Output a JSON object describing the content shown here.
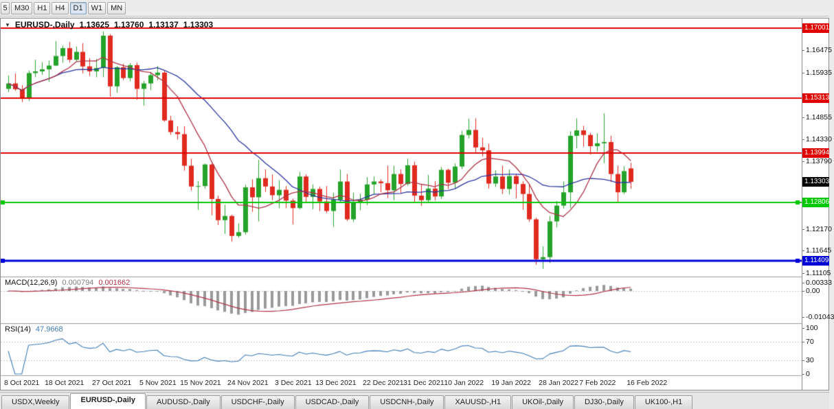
{
  "toolbar": {
    "timeframe_buttons": [
      "5",
      "M30",
      "H1",
      "H4",
      "D1",
      "W1",
      "MN"
    ],
    "active_timeframe": "D1"
  },
  "price_panel": {
    "title": {
      "symbol_period": "EURUSD-,Daily",
      "open": "1.13625",
      "high": "1.13760",
      "low": "1.13137",
      "close": "1.13303"
    },
    "axis_ticks": [
      {
        "label": "1.16475",
        "price": 1.16475
      },
      {
        "label": "1.15935",
        "price": 1.15935
      },
      {
        "label": "1.14855",
        "price": 1.14855
      },
      {
        "label": "1.14330",
        "price": 1.1433
      },
      {
        "label": "1.13790",
        "price": 1.1379
      },
      {
        "label": "1.12170",
        "price": 1.1217
      },
      {
        "label": "1.11645",
        "price": 1.11645
      },
      {
        "label": "1.11105",
        "price": 1.11105
      }
    ],
    "hlines": [
      {
        "label": "1.17001",
        "price": 1.17001,
        "color": "#e00000",
        "width": 2,
        "end_markers": false
      },
      {
        "label": "1.15313",
        "price": 1.15313,
        "color": "#e00000",
        "width": 2,
        "end_markers": false
      },
      {
        "label": "1.13994",
        "price": 1.13994,
        "color": "#e00000",
        "width": 2,
        "end_markers": false
      },
      {
        "label": "1.12806",
        "price": 1.12806,
        "color": "#00c800",
        "width": 2,
        "end_markers": true
      },
      {
        "label": "1.11409",
        "price": 1.11409,
        "color": "#0000d8",
        "width": 3,
        "end_markers": true
      }
    ],
    "current_price_badge": {
      "label": "1.13303",
      "price": 1.13303,
      "bg": "#000000",
      "fg": "#ffffff"
    }
  },
  "macd_panel": {
    "name": "MACD(12,26,9)",
    "main_value": "0.000794",
    "signal_value": "0.001662",
    "axis": [
      {
        "label": "0.00333",
        "value": 0.00333
      },
      {
        "label": "0.00",
        "value": 0
      },
      {
        "label": "-0.01043",
        "value": -0.01043
      }
    ],
    "histogram_color": "#9a9a9a",
    "signal_color": "#b03246"
  },
  "rsi_panel": {
    "name": "RSI(14)",
    "value": "47.9668",
    "axis": [
      {
        "label": "100",
        "value": 100
      },
      {
        "label": "70",
        "value": 70
      },
      {
        "label": "30",
        "value": 30
      },
      {
        "label": "0",
        "value": 0
      }
    ],
    "line_color": "#3e7cb8",
    "level_lines": [
      70,
      30
    ]
  },
  "time_axis": {
    "labels": [
      {
        "text": "8 Oct 2021",
        "bar": 0
      },
      {
        "text": "18 Oct 2021",
        "bar": 6
      },
      {
        "text": "27 Oct 2021",
        "bar": 13
      },
      {
        "text": "5 Nov 2021",
        "bar": 20
      },
      {
        "text": "15 Nov 2021",
        "bar": 26
      },
      {
        "text": "24 Nov 2021",
        "bar": 33
      },
      {
        "text": "3 Dec 2021",
        "bar": 40
      },
      {
        "text": "13 Dec 2021",
        "bar": 46
      },
      {
        "text": "22 Dec 2021",
        "bar": 53
      },
      {
        "text": "31 Dec 2021",
        "bar": 59
      },
      {
        "text": "10 Jan 2022",
        "bar": 65
      },
      {
        "text": "19 Jan 2022",
        "bar": 72
      },
      {
        "text": "28 Jan 2022",
        "bar": 79
      },
      {
        "text": "7 Feb 2022",
        "bar": 85
      },
      {
        "text": "16 Feb 2022",
        "bar": 92
      }
    ]
  },
  "tab_bar": {
    "tabs": [
      "USDX,Weekly",
      "EURUSD-,Daily",
      "AUDUSD-,Daily",
      "USDCHF-,Daily",
      "USDCAD-,Daily",
      "USDCNH-,Daily",
      "XAUUSD-,H1",
      "UKOil-,Daily",
      "DJ30-,Daily",
      "UK100-,H1"
    ],
    "active_index": 1
  },
  "chart_data": {
    "type": "candlestick",
    "symbol": "EURUSD-",
    "timeframe": "Daily",
    "last_bar_ohlc": {
      "open": 1.13625,
      "high": 1.1376,
      "low": 1.13137,
      "close": 1.13303
    },
    "price_axis": {
      "top_price": 1.17232,
      "bottom_price": 1.11038
    },
    "up_color": "#25a22a",
    "down_color": "#e02a20",
    "moving_averages": [
      {
        "type": "sma",
        "period": 8,
        "color": "#b03246"
      },
      {
        "type": "sma",
        "period": 20,
        "color": "#2a33a0"
      }
    ],
    "horizontal_levels": [
      1.17001,
      1.15313,
      1.13994,
      1.12806,
      1.11409
    ],
    "candles_ohlc": [
      [
        1.1554,
        1.1586,
        1.1546,
        1.1567
      ],
      [
        1.1567,
        1.1591,
        1.1549,
        1.1553
      ],
      [
        1.1553,
        1.1563,
        1.1522,
        1.153
      ],
      [
        1.153,
        1.1598,
        1.1525,
        1.1592
      ],
      [
        1.1592,
        1.1624,
        1.1582,
        1.1596
      ],
      [
        1.1596,
        1.1618,
        1.1588,
        1.1601
      ],
      [
        1.1601,
        1.1622,
        1.1571,
        1.161
      ],
      [
        1.161,
        1.1669,
        1.1609,
        1.1633
      ],
      [
        1.1633,
        1.1658,
        1.1617,
        1.1652
      ],
      [
        1.1652,
        1.1667,
        1.1617,
        1.1624
      ],
      [
        1.1624,
        1.1656,
        1.162,
        1.1643
      ],
      [
        1.1643,
        1.1664,
        1.1591,
        1.1608
      ],
      [
        1.1608,
        1.1628,
        1.1585,
        1.1596
      ],
      [
        1.1596,
        1.1626,
        1.1582,
        1.1604
      ],
      [
        1.1604,
        1.1692,
        1.1582,
        1.1682
      ],
      [
        1.1682,
        1.1686,
        1.1535,
        1.156
      ],
      [
        1.156,
        1.1609,
        1.1545,
        1.1606
      ],
      [
        1.1606,
        1.1614,
        1.1575,
        1.158
      ],
      [
        1.158,
        1.1616,
        1.1572,
        1.1611
      ],
      [
        1.1611,
        1.1617,
        1.1528,
        1.1554
      ],
      [
        1.1554,
        1.1573,
        1.1514,
        1.1567
      ],
      [
        1.1567,
        1.1595,
        1.1551,
        1.1587
      ],
      [
        1.1587,
        1.1609,
        1.1575,
        1.1593
      ],
      [
        1.1593,
        1.1598,
        1.1475,
        1.1478
      ],
      [
        1.1478,
        1.1489,
        1.1443,
        1.145
      ],
      [
        1.145,
        1.1464,
        1.1432,
        1.1445
      ],
      [
        1.1445,
        1.1464,
        1.1357,
        1.1369
      ],
      [
        1.1369,
        1.1386,
        1.1309,
        1.1319
      ],
      [
        1.1319,
        1.1332,
        1.1263,
        1.132
      ],
      [
        1.132,
        1.1374,
        1.1314,
        1.1372
      ],
      [
        1.1372,
        1.1374,
        1.125,
        1.1289
      ],
      [
        1.1289,
        1.1297,
        1.1226,
        1.1238
      ],
      [
        1.1238,
        1.1275,
        1.1205,
        1.1248
      ],
      [
        1.1248,
        1.1251,
        1.1186,
        1.12
      ],
      [
        1.12,
        1.123,
        1.1196,
        1.1209
      ],
      [
        1.1209,
        1.1323,
        1.1203,
        1.1317
      ],
      [
        1.1317,
        1.1336,
        1.1258,
        1.1293
      ],
      [
        1.1293,
        1.1383,
        1.1235,
        1.1339
      ],
      [
        1.1339,
        1.136,
        1.1306,
        1.1319
      ],
      [
        1.1319,
        1.1348,
        1.1286,
        1.1298
      ],
      [
        1.1298,
        1.1334,
        1.1267,
        1.1311
      ],
      [
        1.1311,
        1.132,
        1.1267,
        1.1285
      ],
      [
        1.1285,
        1.129,
        1.1228,
        1.1267
      ],
      [
        1.1267,
        1.1354,
        1.1264,
        1.1343
      ],
      [
        1.1343,
        1.1348,
        1.1279,
        1.1294
      ],
      [
        1.1294,
        1.1324,
        1.1264,
        1.1313
      ],
      [
        1.1313,
        1.1319,
        1.126,
        1.1283
      ],
      [
        1.1283,
        1.132,
        1.1255,
        1.126
      ],
      [
        1.126,
        1.1304,
        1.1222,
        1.1287
      ],
      [
        1.1287,
        1.136,
        1.128,
        1.1331
      ],
      [
        1.1331,
        1.1349,
        1.1236,
        1.124
      ],
      [
        1.124,
        1.1304,
        1.1234,
        1.128
      ],
      [
        1.128,
        1.1302,
        1.1262,
        1.1287
      ],
      [
        1.1287,
        1.1342,
        1.1274,
        1.1324
      ],
      [
        1.1324,
        1.1343,
        1.13,
        1.1331
      ],
      [
        1.1331,
        1.1336,
        1.1305,
        1.1327
      ],
      [
        1.1327,
        1.1369,
        1.1291,
        1.131
      ],
      [
        1.131,
        1.1369,
        1.1286,
        1.1349
      ],
      [
        1.1349,
        1.136,
        1.1304,
        1.1325
      ],
      [
        1.1325,
        1.1386,
        1.1321,
        1.137
      ],
      [
        1.137,
        1.1379,
        1.1279,
        1.1297
      ],
      [
        1.1297,
        1.1323,
        1.1272,
        1.1286
      ],
      [
        1.1286,
        1.1347,
        1.1281,
        1.1314
      ],
      [
        1.1314,
        1.1332,
        1.1285,
        1.1295
      ],
      [
        1.1295,
        1.1366,
        1.1289,
        1.1359
      ],
      [
        1.1359,
        1.1362,
        1.1313,
        1.1328
      ],
      [
        1.1328,
        1.1374,
        1.1314,
        1.1367
      ],
      [
        1.1367,
        1.1453,
        1.1361,
        1.1443
      ],
      [
        1.1443,
        1.1482,
        1.1435,
        1.1455
      ],
      [
        1.1455,
        1.1483,
        1.1398,
        1.1413
      ],
      [
        1.1413,
        1.1436,
        1.1391,
        1.1406
      ],
      [
        1.1406,
        1.1422,
        1.1314,
        1.1326
      ],
      [
        1.1326,
        1.1358,
        1.1318,
        1.1343
      ],
      [
        1.1343,
        1.1369,
        1.1301,
        1.1313
      ],
      [
        1.1313,
        1.136,
        1.13,
        1.1344
      ],
      [
        1.1344,
        1.1349,
        1.129,
        1.1325
      ],
      [
        1.1325,
        1.1332,
        1.1263,
        1.1301
      ],
      [
        1.1301,
        1.1324,
        1.1234,
        1.124
      ],
      [
        1.124,
        1.1244,
        1.1131,
        1.1144
      ],
      [
        1.1144,
        1.1175,
        1.1121,
        1.1149
      ],
      [
        1.1149,
        1.1248,
        1.1135,
        1.1235
      ],
      [
        1.1235,
        1.1284,
        1.1221,
        1.1273
      ],
      [
        1.1273,
        1.1331,
        1.1266,
        1.1305
      ],
      [
        1.1305,
        1.1452,
        1.1267,
        1.1441
      ],
      [
        1.1441,
        1.1483,
        1.1411,
        1.1454
      ],
      [
        1.1454,
        1.1465,
        1.1415,
        1.1443
      ],
      [
        1.1443,
        1.1448,
        1.1396,
        1.1416
      ],
      [
        1.1416,
        1.1447,
        1.1403,
        1.1423
      ],
      [
        1.1423,
        1.1495,
        1.1375,
        1.1426
      ],
      [
        1.1426,
        1.1441,
        1.133,
        1.1349
      ],
      [
        1.1349,
        1.1369,
        1.128,
        1.1305
      ],
      [
        1.1305,
        1.1368,
        1.1301,
        1.1356
      ],
      [
        1.13625,
        1.1376,
        1.13137,
        1.13303
      ]
    ]
  }
}
